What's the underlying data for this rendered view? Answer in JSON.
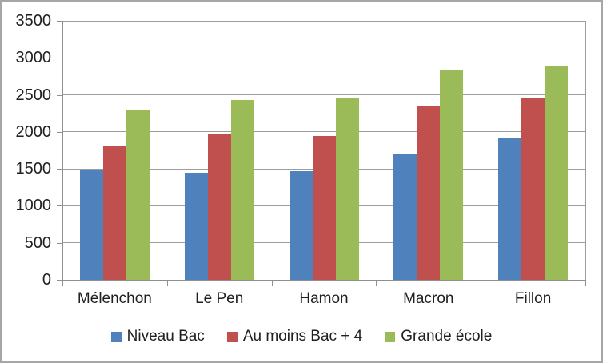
{
  "chart_data": {
    "type": "bar",
    "title": "",
    "xlabel": "",
    "ylabel": "",
    "categories": [
      "Mélenchon",
      "Le Pen",
      "Hamon",
      "Macron",
      "Fillon"
    ],
    "series": [
      {
        "name": "Niveau Bac",
        "color": "#4F81BD",
        "values": [
          1480,
          1450,
          1470,
          1700,
          1920
        ]
      },
      {
        "name": "Au moins Bac + 4",
        "color": "#C0504D",
        "values": [
          1800,
          1980,
          1950,
          2350,
          2450
        ]
      },
      {
        "name": "Grande école",
        "color": "#9BBB59",
        "values": [
          2300,
          2430,
          2450,
          2830,
          2880
        ]
      }
    ],
    "ylim": [
      0,
      3500
    ],
    "y_step": 500,
    "y_ticks": [
      0,
      500,
      1000,
      1500,
      2000,
      2500,
      3000,
      3500
    ],
    "grid": true,
    "legend_position": "bottom"
  },
  "colors": {
    "background": "#ffffff",
    "frame_border": "#a6a6a6",
    "gridline": "#9d9d9d",
    "axis": "#8f8f8f",
    "text": "#202020"
  }
}
